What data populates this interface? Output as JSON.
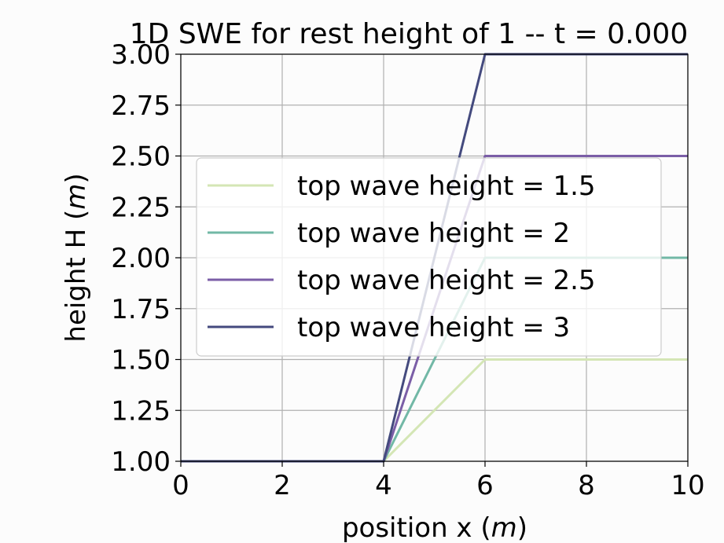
{
  "chart_data": {
    "type": "line",
    "title": "1D SWE for rest height of 1 -- t = 0.000",
    "xlabel": "position x (m)",
    "xlabel_parts": {
      "prefix": "position x (",
      "unit": "m",
      "suffix": ")"
    },
    "ylabel": "height H (m)",
    "ylabel_parts": {
      "prefix": "height H (",
      "unit": "m",
      "suffix": ")"
    },
    "xlim": [
      0,
      10
    ],
    "ylim": [
      1.0,
      3.0
    ],
    "xticks": [
      0,
      2,
      4,
      6,
      8,
      10
    ],
    "xtick_labels": [
      "0",
      "2",
      "4",
      "6",
      "8",
      "10"
    ],
    "yticks": [
      1.0,
      1.25,
      1.5,
      1.75,
      2.0,
      2.25,
      2.5,
      2.75,
      3.0
    ],
    "ytick_labels": [
      "1.00",
      "1.25",
      "1.50",
      "1.75",
      "2.00",
      "2.25",
      "2.50",
      "2.75",
      "3.00"
    ],
    "grid": true,
    "legend_position": "center-right",
    "series": [
      {
        "name": "top wave height = 1.5",
        "color": "#d4e6b5",
        "x": [
          0,
          4,
          6,
          10
        ],
        "y": [
          1.0,
          1.0,
          1.5,
          1.5
        ]
      },
      {
        "name": "top wave height = 2",
        "color": "#72b8a6",
        "x": [
          0,
          4,
          6,
          10
        ],
        "y": [
          1.0,
          1.0,
          2.0,
          2.0
        ]
      },
      {
        "name": "top wave height = 2.5",
        "color": "#7b5ea7",
        "x": [
          0,
          4,
          6,
          10
        ],
        "y": [
          1.0,
          1.0,
          2.5,
          2.5
        ]
      },
      {
        "name": "top wave height = 3",
        "color": "#444a7e",
        "x": [
          0,
          4,
          6,
          10
        ],
        "y": [
          1.0,
          1.0,
          3.0,
          3.0
        ]
      }
    ]
  }
}
